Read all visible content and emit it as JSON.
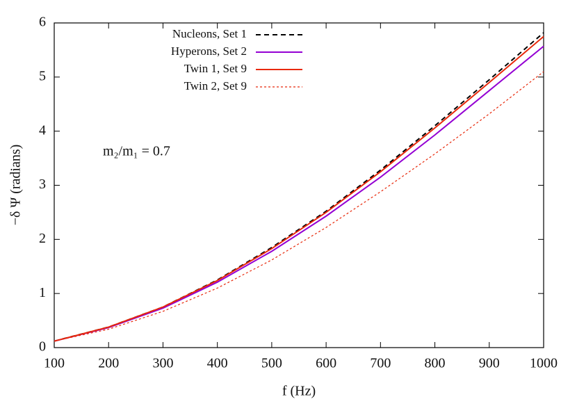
{
  "chart_data": {
    "type": "line",
    "x_label": "f (Hz)",
    "y_label": "−δ Ψ (radians)",
    "annotation": "m₂/m₁ = 0.7",
    "x": [
      100,
      200,
      300,
      400,
      500,
      600,
      700,
      800,
      900,
      1000
    ],
    "series": [
      {
        "name": "Nucleons, Set 1",
        "color": "#000000",
        "dash": "dashed",
        "values": [
          0.12,
          0.38,
          0.75,
          1.25,
          1.85,
          2.52,
          3.28,
          4.1,
          4.95,
          5.82
        ]
      },
      {
        "name": "Hyperons, Set 2",
        "color": "#9400d3",
        "dash": "solid",
        "values": [
          0.12,
          0.37,
          0.73,
          1.21,
          1.78,
          2.43,
          3.15,
          3.93,
          4.75,
          5.57
        ]
      },
      {
        "name": "Twin 1, Set 9",
        "color": "#e8280a",
        "dash": "solid",
        "values": [
          0.12,
          0.38,
          0.75,
          1.24,
          1.83,
          2.5,
          3.25,
          4.06,
          4.9,
          5.75
        ]
      },
      {
        "name": "Twin 2, Set 9",
        "color": "#e8280a",
        "dash": "dotted",
        "values": [
          0.12,
          0.34,
          0.67,
          1.1,
          1.62,
          2.22,
          2.88,
          3.58,
          4.32,
          5.1
        ]
      }
    ],
    "xlim": [
      100,
      1000
    ],
    "xticks": [
      100,
      200,
      300,
      400,
      500,
      600,
      700,
      800,
      900,
      1000
    ],
    "ylim": [
      0,
      6
    ],
    "yticks": [
      0,
      1,
      2,
      3,
      4,
      5,
      6
    ],
    "legend": "top-left",
    "grid": false
  }
}
